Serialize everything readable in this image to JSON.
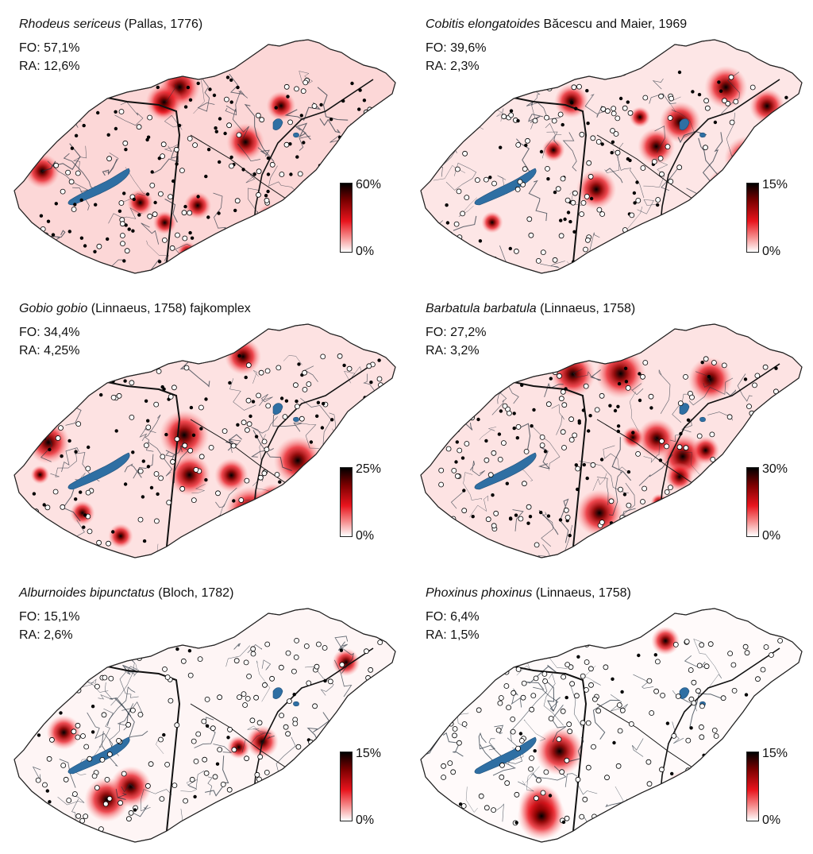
{
  "colors": {
    "lake": "#2f6fa3",
    "river": "#1f2d3a",
    "heat_high": "#000000",
    "heat_mid": "#e8141d",
    "heat_low": "#ffffff",
    "land": "#ffffff"
  },
  "panels": [
    {
      "species": "Rhodeus sericeus",
      "author": "(Pallas, 1776)",
      "fo": "FO: 57,1%",
      "ra": "RA: 12,6%",
      "scale_max": "60%",
      "scale_min": "0%",
      "level": 0.55
    },
    {
      "species": "Cobitis elongatoides",
      "author": "Băcescu and Maier, 1969",
      "fo": "FO: 39,6%",
      "ra": "RA: 2,3%",
      "scale_max": "15%",
      "scale_min": "0%",
      "level": 0.35
    },
    {
      "species": "Gobio gobio",
      "author": "(Linnaeus, 1758) fajkomplex",
      "fo": "FO: 34,4%",
      "ra": "RA: 4,25%",
      "scale_max": "25%",
      "scale_min": "0%",
      "level": 0.4
    },
    {
      "species": "Barbatula barbatula",
      "author": "(Linnaeus, 1758)",
      "fo": "FO: 27,2%",
      "ra": "RA: 3,2%",
      "scale_max": "30%",
      "scale_min": "0%",
      "level": 0.38
    },
    {
      "species": "Alburnoides bipunctatus",
      "author": "(Bloch, 1782)",
      "fo": "FO: 15,1%",
      "ra": "RA: 2,6%",
      "scale_max": "15%",
      "scale_min": "0%",
      "level": 0.15
    },
    {
      "species": "Phoxinus phoxinus",
      "author": "(Linnaeus, 1758)",
      "fo": "FO: 6,4%",
      "ra": "RA: 1,5%",
      "scale_max": "15%",
      "scale_min": "0%",
      "level": 0.08
    }
  ]
}
